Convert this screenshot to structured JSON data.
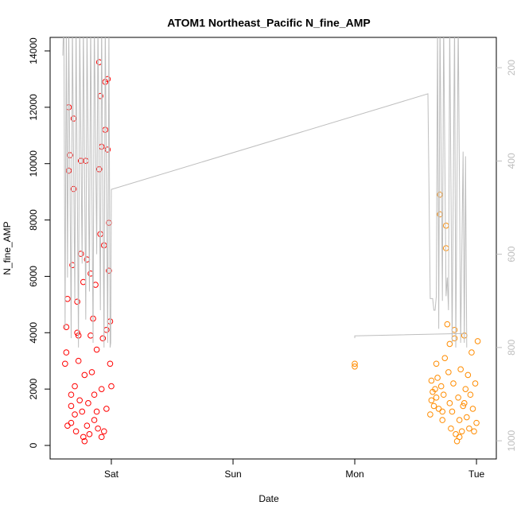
{
  "chart_data": {
    "type": "scatter",
    "title": "ATOM1 Northeast_Pacific N_fine_AMP",
    "x_label": "Date",
    "y_label": "N_fine_AMP",
    "xlim": [
      -0.503,
      3.163
    ],
    "xticks": [
      {
        "value": 0,
        "label": "Sat"
      },
      {
        "value": 1,
        "label": "Sun"
      },
      {
        "value": 2,
        "label": "Mon"
      },
      {
        "value": 3,
        "label": "Tue"
      }
    ],
    "ylim": [
      -480,
      14480
    ],
    "yticks": [
      0,
      2000,
      4000,
      6000,
      8000,
      10000,
      12000,
      14000
    ],
    "y2lim": [
      1039,
      135
    ],
    "y2ticks": [
      200,
      400,
      600,
      800,
      1000
    ],
    "y2_color": "#bebebe",
    "series": [
      {
        "type": "scatter",
        "color": "#ff0000",
        "x": [
          -0.38,
          -0.37,
          -0.37,
          -0.36,
          -0.35,
          -0.35,
          -0.34,
          -0.33,
          -0.33,
          -0.32,
          -0.31,
          -0.31,
          -0.3,
          -0.29,
          -0.28,
          -0.28,
          -0.27,
          -0.26,
          -0.25,
          -0.25,
          -0.24,
          -0.23,
          -0.23,
          -0.22,
          -0.21,
          -0.2,
          -0.2,
          -0.19,
          -0.18,
          -0.17,
          -0.17,
          -0.16,
          -0.15,
          -0.14,
          -0.13,
          -0.12,
          -0.12,
          -0.11,
          -0.1,
          -0.1,
          -0.09,
          -0.09,
          -0.08,
          -0.08,
          -0.07,
          -0.06,
          -0.06,
          -0.05,
          -0.05,
          -0.04,
          -0.04,
          -0.03,
          -0.03,
          -0.02,
          -0.02,
          -0.01,
          -0.01,
          0.0,
          -0.36,
          -0.3,
          -0.22,
          -0.14,
          -0.08,
          -0.33,
          -0.27
        ],
        "values": [
          2900,
          3300,
          4200,
          5200,
          9750,
          12000,
          10300,
          1400,
          800,
          6400,
          11600,
          9100,
          2100,
          500,
          4000,
          5100,
          3000,
          1600,
          6800,
          10100,
          1200,
          300,
          5800,
          2500,
          10100,
          6600,
          700,
          1500,
          400,
          3900,
          6100,
          2600,
          4500,
          900,
          5700,
          1200,
          3400,
          600,
          13600,
          9800,
          12400,
          7500,
          10600,
          2000,
          3800,
          500,
          7100,
          12900,
          11200,
          1300,
          4100,
          13000,
          10500,
          7900,
          6200,
          4400,
          2900,
          2100,
          700,
          1100,
          150,
          1800,
          300,
          1800,
          3900
        ]
      },
      {
        "type": "scatter",
        "color": "#ff8c00",
        "x": [
          2.0,
          2.0,
          2.62,
          2.63,
          2.64,
          2.65,
          2.66,
          2.67,
          2.68,
          2.69,
          2.7,
          2.7,
          2.71,
          2.72,
          2.73,
          2.74,
          2.75,
          2.75,
          2.76,
          2.77,
          2.78,
          2.79,
          2.8,
          2.81,
          2.82,
          2.83,
          2.84,
          2.85,
          2.86,
          2.87,
          2.88,
          2.89,
          2.9,
          2.91,
          2.92,
          2.93,
          2.94,
          2.95,
          2.96,
          2.97,
          2.98,
          2.99,
          3.0,
          3.01,
          2.63,
          2.67,
          2.72,
          2.78,
          2.82,
          2.86,
          2.9
        ],
        "values": [
          2800,
          2900,
          1100,
          1600,
          1900,
          1400,
          2000,
          1700,
          2400,
          1300,
          8900,
          8200,
          2100,
          900,
          1800,
          3100,
          7800,
          7000,
          4300,
          2600,
          1500,
          600,
          1200,
          2200,
          3800,
          400,
          150,
          1700,
          900,
          2700,
          500,
          1400,
          3900,
          2000,
          1000,
          2500,
          600,
          1800,
          3300,
          1300,
          500,
          2200,
          800,
          3700,
          2300,
          2900,
          1200,
          3600,
          4100,
          300,
          1500
        ]
      },
      {
        "type": "line",
        "axis": "y2",
        "color": "#bebebe",
        "x": [
          -0.399,
          -0.395,
          -0.39,
          -0.38,
          -0.37,
          -0.36,
          -0.35,
          -0.33,
          -0.32,
          -0.3,
          -0.29,
          -0.27,
          -0.26,
          -0.24,
          -0.23,
          -0.21,
          -0.2,
          -0.18,
          -0.17,
          -0.15,
          -0.14,
          -0.12,
          -0.11,
          -0.09,
          -0.08,
          -0.06,
          -0.05,
          -0.03,
          -0.02,
          -0.01,
          -0.005,
          0.0,
          2.601,
          2.62,
          2.64,
          2.65,
          2.66,
          2.67,
          2.68,
          2.69,
          2.7,
          2.72,
          2.73,
          2.75,
          2.76,
          2.77,
          2.78,
          2.8,
          2.82,
          2.83,
          2.85,
          2.87,
          2.89,
          2.9,
          2.91,
          2.92,
          null,
          2.0,
          2.0,
          2.9
        ],
        "values": [
          174,
          137,
          110,
          760,
          100,
          650,
          100,
          780,
          100,
          700,
          100,
          800,
          100,
          620,
          100,
          740,
          100,
          680,
          100,
          790,
          100,
          600,
          100,
          720,
          100,
          800,
          100,
          790,
          100,
          800,
          790,
          461,
          256,
          695,
          695,
          720,
          720,
          690,
          100,
          760,
          100,
          700,
          100,
          690,
          650,
          720,
          100,
          790,
          100,
          800,
          100,
          790,
          380,
          790,
          390,
          800,
          null,
          780,
          775,
          770
        ]
      }
    ]
  }
}
